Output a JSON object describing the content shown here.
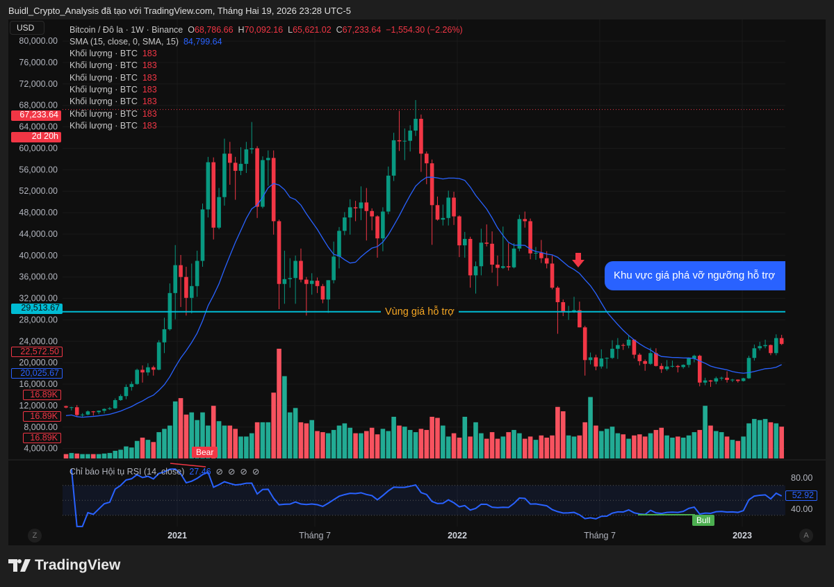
{
  "credit": "Buidl_Crypto_Analysis đã tạo với TradingView.com, Tháng Hai 19, 2026 23:28 UTC-5",
  "currency": "USD",
  "legend": {
    "symbol": "Bitcoin / Đô la · 1W · Binance",
    "o_label": "O",
    "o": "68,786.66",
    "h_label": "H",
    "h": "70,092.16",
    "l_label": "L",
    "l": "65,621.02",
    "c_label": "C",
    "c": "67,233.64",
    "change": "−1,554.30 (−2.26%)",
    "sma_label": "SMA (15, close, 0, SMA, 15)",
    "sma_value": "84,799.64",
    "volume_rows": [
      {
        "label": "Khối lượng · BTC",
        "value": "183"
      },
      {
        "label": "Khối lượng · BTC",
        "value": "183"
      },
      {
        "label": "Khối lượng · BTC",
        "value": "183"
      },
      {
        "label": "Khối lượng · BTC",
        "value": "183"
      },
      {
        "label": "Khối lượng · BTC",
        "value": "183"
      },
      {
        "label": "Khối lượng · BTC",
        "value": "183"
      },
      {
        "label": "Khối lượng · BTC",
        "value": "183"
      }
    ]
  },
  "badges": {
    "last_price": "67,233.64",
    "countdown": "2d 20h",
    "support_price": "29,513.67",
    "price_a": "22,572.50",
    "sma_price": "20,025.67",
    "vol_1": "16.89K",
    "vol_2": "16.89K",
    "vol_3": "16.89K"
  },
  "annotations": {
    "support_label": "Vùng giá hỗ trợ",
    "callout": "Khu vực giá phá vỡ ngưỡng hỗ trợ",
    "bear": "Bear",
    "bull": "Bull"
  },
  "rsi": {
    "label": "Chỉ báo Hội tụ RSI (14, close)",
    "value": "27.46",
    "current": "52.92",
    "ticks": [
      "80.00",
      "40.00"
    ],
    "icons": [
      "⊘",
      "⊘",
      "⊘",
      "⊘"
    ]
  },
  "x_labels": [
    {
      "text": "2021",
      "bold": true
    },
    {
      "text": "Tháng 7",
      "bold": false
    },
    {
      "text": "2022",
      "bold": true
    },
    {
      "text": "Tháng 7",
      "bold": false
    },
    {
      "text": "2023",
      "bold": true
    }
  ],
  "scale_buttons": {
    "left": "Z",
    "right": "A"
  },
  "brand": "TradingView",
  "colors": {
    "up": "#089981",
    "down": "#f23645",
    "vol_up": "#22ab94",
    "vol_down": "#f7525f",
    "sma": "#2962ff",
    "support": "#00bcd4",
    "rsi": "#2962ff"
  },
  "chart_data": {
    "type": "candlestick",
    "interval": "1W",
    "first_week": "2020-08-17",
    "y_ticks": [
      "80,000.00",
      "76,000.00",
      "72,000.00",
      "68,000.00",
      "64,000.00",
      "60,000.00",
      "56,000.00",
      "52,000.00",
      "48,000.00",
      "44,000.00",
      "40,000.00",
      "36,000.00",
      "32,000.00",
      "28,000.00",
      "24,000.00",
      "20,000.00",
      "16,000.00",
      "12,000.00",
      "8,000.00",
      "4,000.00"
    ],
    "ylim": [
      2000,
      80500
    ],
    "support_level": 29513.67,
    "last_price": 67233.64,
    "rsi_bands": [
      70,
      30
    ],
    "ohlc": [
      [
        11900,
        12000,
        11500,
        11650
      ],
      [
        11650,
        11800,
        11100,
        11700
      ],
      [
        11700,
        12100,
        9900,
        10250
      ],
      [
        10250,
        10600,
        9900,
        10330
      ],
      [
        10330,
        11100,
        10200,
        10930
      ],
      [
        10930,
        11000,
        10150,
        10780
      ],
      [
        10780,
        11100,
        10400,
        11050
      ],
      [
        11050,
        11500,
        10550,
        11380
      ],
      [
        11380,
        11750,
        11200,
        11500
      ],
      [
        11500,
        13350,
        11400,
        13030
      ],
      [
        13030,
        14100,
        12900,
        13780
      ],
      [
        13780,
        15950,
        13200,
        15480
      ],
      [
        15480,
        16500,
        14800,
        16040
      ],
      [
        16040,
        18900,
        15900,
        18680
      ],
      [
        18680,
        19500,
        16300,
        18190
      ],
      [
        18190,
        19900,
        17600,
        19150
      ],
      [
        19150,
        19450,
        17600,
        18700
      ],
      [
        18700,
        24200,
        18600,
        23800
      ],
      [
        23800,
        28400,
        21800,
        26250
      ],
      [
        26250,
        34800,
        26000,
        33000
      ],
      [
        33000,
        41950,
        28100,
        38200
      ],
      [
        38200,
        40100,
        30400,
        36000
      ],
      [
        36000,
        37900,
        28800,
        32100
      ],
      [
        32100,
        38500,
        29200,
        34300
      ],
      [
        34300,
        40900,
        32300,
        39000
      ],
      [
        39000,
        49700,
        37900,
        48600
      ],
      [
        48600,
        58400,
        47100,
        57400
      ],
      [
        57400,
        58300,
        43000,
        45200
      ],
      [
        45200,
        52600,
        44900,
        50900
      ],
      [
        50900,
        61800,
        49300,
        59000
      ],
      [
        59000,
        61200,
        53200,
        57300
      ],
      [
        57300,
        58400,
        50400,
        55800
      ],
      [
        55800,
        60200,
        55000,
        57100
      ],
      [
        57100,
        61200,
        55400,
        59800
      ],
      [
        59800,
        64900,
        59000,
        60000
      ],
      [
        60000,
        60400,
        47000,
        49100
      ],
      [
        49100,
        58500,
        48800,
        57800
      ],
      [
        57800,
        59600,
        53000,
        58200
      ],
      [
        58200,
        59600,
        43900,
        46400
      ],
      [
        46400,
        46700,
        30000,
        34700
      ],
      [
        34700,
        40900,
        31000,
        35600
      ],
      [
        35600,
        39500,
        34000,
        35800
      ],
      [
        35800,
        40000,
        31000,
        39000
      ],
      [
        39000,
        41300,
        35000,
        35500
      ],
      [
        35500,
        36000,
        28800,
        34700
      ],
      [
        34700,
        36700,
        32700,
        35300
      ],
      [
        35300,
        35900,
        33000,
        34300
      ],
      [
        34300,
        34700,
        31100,
        31800
      ],
      [
        31800,
        35400,
        29300,
        35400
      ],
      [
        35400,
        42600,
        34800,
        39800
      ],
      [
        39800,
        45300,
        37600,
        44600
      ],
      [
        44600,
        48100,
        43800,
        47100
      ],
      [
        47100,
        50500,
        43900,
        49000
      ],
      [
        49000,
        50200,
        46400,
        48800
      ],
      [
        48800,
        52900,
        46600,
        49900
      ],
      [
        49900,
        52600,
        42800,
        48300
      ],
      [
        48300,
        48800,
        44700,
        47300
      ],
      [
        47300,
        47500,
        39600,
        43200
      ],
      [
        43200,
        49000,
        40800,
        48200
      ],
      [
        48200,
        56600,
        47700,
        54900
      ],
      [
        54900,
        62900,
        53900,
        61500
      ],
      [
        61500,
        67000,
        59500,
        61300
      ],
      [
        61300,
        63700,
        57800,
        61400
      ],
      [
        61400,
        64300,
        59400,
        63300
      ],
      [
        63300,
        69000,
        62300,
        65500
      ],
      [
        65500,
        66300,
        55600,
        59000
      ],
      [
        59000,
        59400,
        53300,
        57200
      ],
      [
        57200,
        57900,
        42000,
        49400
      ],
      [
        49400,
        51000,
        46500,
        46700
      ],
      [
        46700,
        49500,
        45600,
        47000
      ],
      [
        47000,
        52100,
        45600,
        50800
      ],
      [
        50800,
        51900,
        45700,
        47300
      ],
      [
        47300,
        47500,
        39700,
        41900
      ],
      [
        41900,
        44400,
        39600,
        43100
      ],
      [
        43100,
        43500,
        34000,
        36300
      ],
      [
        36300,
        38900,
        32900,
        38000
      ],
      [
        38000,
        45000,
        36300,
        42400
      ],
      [
        42400,
        45800,
        41700,
        42200
      ],
      [
        42200,
        44500,
        36800,
        38300
      ],
      [
        38300,
        40000,
        34300,
        37700
      ],
      [
        37700,
        45400,
        37500,
        38000
      ],
      [
        38000,
        42300,
        37200,
        37800
      ],
      [
        37800,
        42300,
        37600,
        41300
      ],
      [
        41300,
        47600,
        40800,
        46800
      ],
      [
        46800,
        48200,
        45200,
        46400
      ],
      [
        46400,
        46900,
        39300,
        40400
      ],
      [
        40400,
        41600,
        39200,
        40500
      ],
      [
        40500,
        42900,
        38600,
        39500
      ],
      [
        39500,
        40800,
        37600,
        38500
      ],
      [
        38500,
        40000,
        33700,
        34000
      ],
      [
        34000,
        34300,
        25400,
        31300
      ],
      [
        31300,
        31800,
        28700,
        29400
      ],
      [
        29400,
        30600,
        28000,
        29500
      ],
      [
        29500,
        32300,
        29300,
        29800
      ],
      [
        29800,
        31400,
        26600,
        26600
      ],
      [
        26600,
        26900,
        17600,
        20500
      ],
      [
        20500,
        21900,
        19700,
        21000
      ],
      [
        21000,
        21500,
        18600,
        19300
      ],
      [
        19300,
        22500,
        18900,
        20800
      ],
      [
        20800,
        21000,
        18900,
        20900
      ],
      [
        20900,
        24200,
        20700,
        22600
      ],
      [
        22600,
        24600,
        20700,
        23300
      ],
      [
        23300,
        23600,
        22400,
        23200
      ],
      [
        23200,
        25200,
        22700,
        24300
      ],
      [
        24300,
        24400,
        20800,
        21500
      ],
      [
        21500,
        21800,
        19500,
        20300
      ],
      [
        20300,
        20600,
        18500,
        19800
      ],
      [
        19800,
        22800,
        19600,
        21800
      ],
      [
        21800,
        22700,
        19300,
        19400
      ],
      [
        19400,
        19900,
        18100,
        18800
      ],
      [
        18800,
        20500,
        18500,
        19300
      ],
      [
        19300,
        20400,
        19100,
        19400
      ],
      [
        19400,
        19600,
        18200,
        19200
      ],
      [
        19200,
        19700,
        18900,
        19600
      ],
      [
        19600,
        21000,
        19100,
        20800
      ],
      [
        20800,
        21500,
        20100,
        21300
      ],
      [
        21300,
        21500,
        15600,
        16300
      ],
      [
        16300,
        17200,
        15800,
        16700
      ],
      [
        16700,
        16800,
        15500,
        16500
      ],
      [
        16500,
        17400,
        16000,
        17100
      ],
      [
        17100,
        17400,
        16700,
        17200
      ],
      [
        17200,
        18400,
        16300,
        16800
      ],
      [
        16800,
        17000,
        16400,
        16850
      ],
      [
        16850,
        16900,
        16300,
        16600
      ],
      [
        16600,
        17200,
        16500,
        17100
      ],
      [
        17100,
        21300,
        17000,
        20900
      ],
      [
        20900,
        23400,
        20400,
        22700
      ],
      [
        22700,
        23900,
        22300,
        23100
      ],
      [
        23100,
        24300,
        22700,
        23300
      ],
      [
        23300,
        23400,
        21400,
        21800
      ],
      [
        21800,
        25300,
        21400,
        24600
      ],
      [
        24600,
        25200,
        23300,
        23500
      ]
    ],
    "volume_k": [
      40,
      50,
      45,
      40,
      40,
      40,
      40,
      45,
      50,
      70,
      80,
      110,
      100,
      160,
      190,
      170,
      150,
      240,
      270,
      300,
      520,
      550,
      400,
      420,
      350,
      420,
      300,
      480,
      340,
      300,
      300,
      270,
      200,
      200,
      230,
      330,
      330,
      330,
      600,
      1000,
      750,
      420,
      460,
      330,
      320,
      350,
      250,
      240,
      230,
      260,
      300,
      320,
      280,
      230,
      230,
      250,
      280,
      220,
      270,
      250,
      380,
      300,
      290,
      260,
      240,
      270,
      260,
      380,
      370,
      300,
      200,
      230,
      190,
      380,
      200,
      330,
      230,
      180,
      240,
      180,
      200,
      240,
      260,
      230,
      180,
      200,
      170,
      210,
      190,
      210,
      470,
      430,
      210,
      200,
      210,
      330,
      560,
      300,
      250,
      270,
      290,
      230,
      220,
      180,
      210,
      220,
      200,
      230,
      260,
      280,
      210,
      190,
      200,
      190,
      210,
      240,
      260,
      480,
      300,
      250,
      240,
      200,
      170,
      160,
      200,
      320,
      360,
      350,
      360,
      330,
      320,
      290
    ],
    "sma_period": 15,
    "rsi_period": 14
  }
}
